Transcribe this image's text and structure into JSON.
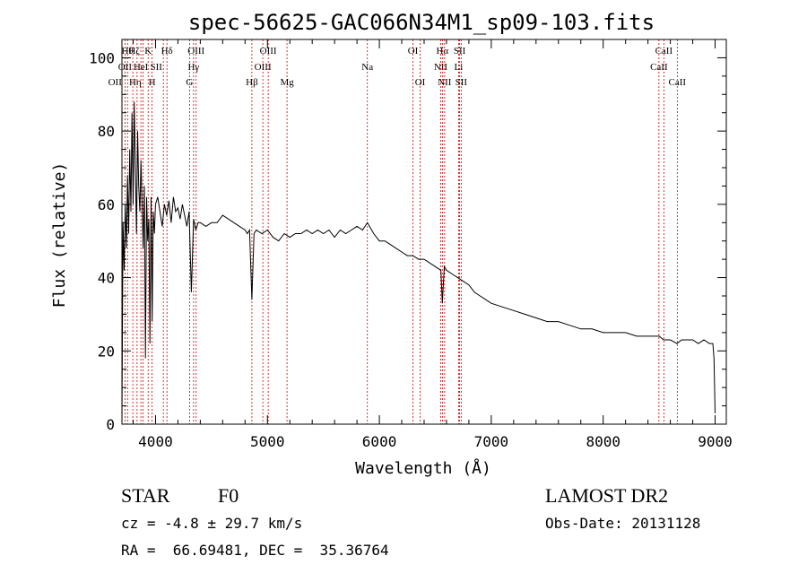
{
  "chart_data": {
    "type": "line",
    "title": "spec-56625-GAC066N34M1_sp09-103.fits",
    "xlabel": "Wavelength (Å)",
    "ylabel": "Flux (relative)",
    "xlim": [
      3700,
      9100
    ],
    "ylim": [
      0,
      105
    ],
    "xticks": [
      4000,
      5000,
      6000,
      7000,
      8000,
      9000
    ],
    "yticks": [
      0,
      20,
      40,
      60,
      80,
      100
    ],
    "grid": false,
    "series": [
      {
        "x": [
          3700,
          3710,
          3720,
          3730,
          3740,
          3750,
          3760,
          3770,
          3780,
          3790,
          3800,
          3810,
          3820,
          3830,
          3840,
          3850,
          3860,
          3870,
          3880,
          3890,
          3900,
          3910,
          3920,
          3930,
          3940,
          3950,
          3960,
          3970,
          3980,
          3990,
          4000,
          4020,
          4040,
          4060,
          4080,
          4100,
          4120,
          4140,
          4160,
          4180,
          4200,
          4220,
          4240,
          4260,
          4280,
          4300,
          4320,
          4340,
          4360,
          4380,
          4400,
          4450,
          4500,
          4550,
          4600,
          4650,
          4700,
          4750,
          4800,
          4820,
          4840,
          4861,
          4880,
          4900,
          4950,
          5000,
          5050,
          5100,
          5150,
          5200,
          5250,
          5300,
          5350,
          5400,
          5450,
          5500,
          5550,
          5600,
          5650,
          5700,
          5750,
          5800,
          5850,
          5893,
          5950,
          6000,
          6050,
          6100,
          6150,
          6200,
          6250,
          6300,
          6350,
          6400,
          6450,
          6500,
          6550,
          6563,
          6580,
          6600,
          6650,
          6700,
          6750,
          6800,
          6850,
          6900,
          6950,
          7000,
          7100,
          7200,
          7300,
          7400,
          7500,
          7600,
          7700,
          7800,
          7900,
          8000,
          8100,
          8200,
          8300,
          8400,
          8500,
          8540,
          8600,
          8660,
          8700,
          8750,
          8800,
          8850,
          8900,
          8950,
          8980,
          8990,
          9000
        ],
        "y": [
          1,
          55,
          42,
          60,
          48,
          68,
          52,
          75,
          58,
          85,
          60,
          88,
          70,
          52,
          80,
          65,
          58,
          72,
          60,
          48,
          65,
          18,
          62,
          50,
          56,
          22,
          62,
          28,
          58,
          52,
          60,
          62,
          58,
          54,
          60,
          57,
          61,
          55,
          62,
          58,
          59,
          56,
          60,
          57,
          54,
          58,
          36,
          56,
          53,
          55,
          55,
          54,
          55,
          55,
          57,
          56,
          55,
          54,
          53,
          52,
          53,
          34,
          52,
          53,
          52,
          53,
          51,
          50,
          52,
          51,
          52,
          52,
          53,
          52,
          53,
          52,
          53,
          51,
          53,
          52,
          53,
          54,
          53,
          55,
          52,
          50,
          50,
          49,
          48,
          47,
          46,
          46,
          45,
          45,
          44,
          43,
          42,
          33,
          43,
          42,
          41,
          40,
          39,
          38,
          36,
          35,
          34,
          33,
          32,
          31,
          30,
          29,
          28,
          28,
          27,
          26,
          26,
          25,
          25,
          25,
          24,
          24,
          24,
          23,
          23,
          22,
          23,
          23,
          23,
          22,
          23,
          22,
          22,
          18,
          3
        ]
      }
    ],
    "lines": [
      {
        "x": 3727,
        "label": "OII",
        "row": 1,
        "dx": 0
      },
      {
        "x": 3750,
        "label": "OII",
        "row": 2,
        "dx": -14
      },
      {
        "x": 3797,
        "label": "Hθ",
        "row": 0,
        "dx": -6
      },
      {
        "x": 3835,
        "label": "Hη",
        "row": 2,
        "dx": -2
      },
      {
        "x": 3869,
        "label": "HeI",
        "row": 1,
        "dx": 0
      },
      {
        "x": 3889,
        "label": "Hζ",
        "row": 0,
        "dx": -10
      },
      {
        "x": 3934,
        "label": "K",
        "row": 0,
        "dx": 0
      },
      {
        "x": 3969,
        "label": "H",
        "row": 2,
        "dx": 0
      },
      {
        "x": 4070,
        "label": "SII",
        "row": 1,
        "dx": -8
      },
      {
        "x": 4102,
        "label": "Hδ",
        "row": 0,
        "dx": 0
      },
      {
        "x": 4304,
        "label": "G",
        "row": 2,
        "dx": 0
      },
      {
        "x": 4340,
        "label": "Hγ",
        "row": 1,
        "dx": 0
      },
      {
        "x": 4363,
        "label": "OIII",
        "row": 0,
        "dx": 0
      },
      {
        "x": 4861,
        "label": "Hβ",
        "row": 2,
        "dx": 0
      },
      {
        "x": 4959,
        "label": "OIII",
        "row": 1,
        "dx": 0
      },
      {
        "x": 5007,
        "label": "OIII",
        "row": 0,
        "dx": 0
      },
      {
        "x": 5175,
        "label": "Mg",
        "row": 2,
        "dx": 0
      },
      {
        "x": 5893,
        "label": "Na",
        "row": 1,
        "dx": 0
      },
      {
        "x": 6300,
        "label": "OI",
        "row": 0,
        "dx": 0
      },
      {
        "x": 6364,
        "label": "OI",
        "row": 2,
        "dx": 0
      },
      {
        "x": 6548,
        "label": "NII",
        "row": 1,
        "dx": 0
      },
      {
        "x": 6563,
        "label": "Hα",
        "row": 0,
        "dx": 0
      },
      {
        "x": 6583,
        "label": "NII",
        "row": 2,
        "dx": 0
      },
      {
        "x": 6708,
        "label": "Li",
        "row": 1,
        "dx": 0
      },
      {
        "x": 6717,
        "label": "SII",
        "row": 0,
        "dx": 0
      },
      {
        "x": 6731,
        "label": "SII",
        "row": 2,
        "dx": 0
      },
      {
        "x": 8498,
        "label": "CaII",
        "row": 1,
        "dx": 0
      },
      {
        "x": 8542,
        "label": "CaII",
        "row": 0,
        "dx": 0
      },
      {
        "x": 8662,
        "label": "CaII",
        "row": 2,
        "dx": 0
      }
    ]
  },
  "info": {
    "object_class": "STAR",
    "subclass": "F0",
    "redshift": "cz = -4.8 ± 29.7 km/s",
    "coords": "RA =  66.69481, DEC =  35.36764",
    "survey": "LAMOST DR2",
    "obs_date": "Obs-Date: 20131128"
  }
}
